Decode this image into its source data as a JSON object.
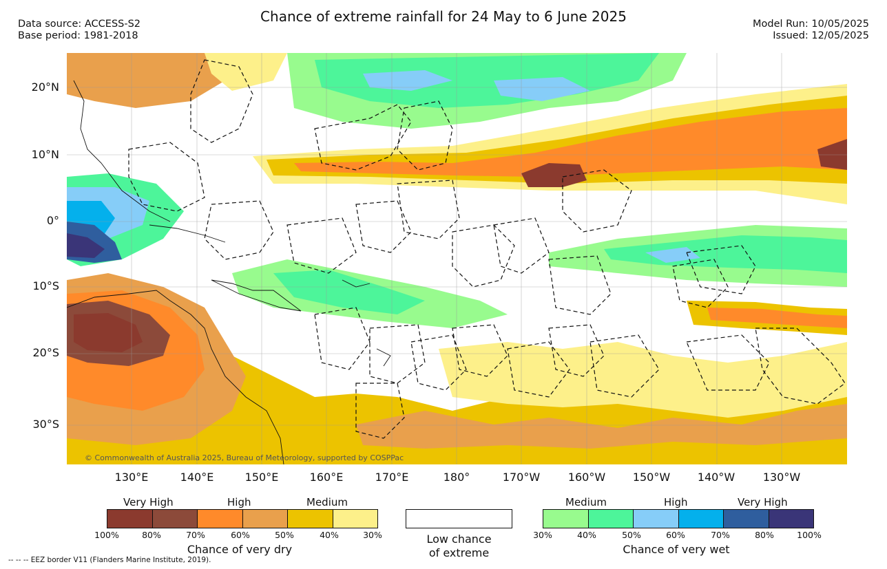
{
  "header": {
    "title": "Chance of extreme rainfall for 24 May to 6 June 2025",
    "data_source": "Data source: ACCESS-S2",
    "base_period": "Base period: 1981-2018",
    "model_run": "Model Run: 10/05/2025",
    "issued": "Issued: 12/05/2025"
  },
  "map": {
    "lat_labels": [
      "20°N",
      "10°N",
      "0°",
      "10°S",
      "20°S",
      "30°S"
    ],
    "lon_labels": [
      "130°E",
      "140°E",
      "150°E",
      "160°E",
      "170°E",
      "180°",
      "170°W",
      "160°W",
      "150°W",
      "140°W",
      "130°W"
    ],
    "copyright": "© Commonwealth of Australia 2025, Bureau of Meteorology, supported by COSPPac"
  },
  "legend": {
    "dry": {
      "categories": [
        "Very High",
        "High",
        "Medium"
      ],
      "percents": [
        "100%",
        "80%",
        "70%",
        "60%",
        "50%",
        "40%",
        "30%"
      ],
      "title": "Chance of very dry",
      "colors": [
        "#8b3a2e",
        "#8c4a3a",
        "#ff8a2a",
        "#e9a04c",
        "#ecc300",
        "#fdf08a"
      ]
    },
    "low": {
      "line1": "Low chance",
      "line2": "of extreme"
    },
    "wet": {
      "categories": [
        "Medium",
        "High",
        "Very High"
      ],
      "percents": [
        "30%",
        "40%",
        "50%",
        "60%",
        "70%",
        "80%",
        "100%"
      ],
      "title": "Chance of very wet",
      "colors": [
        "#98fb8e",
        "#4df59a",
        "#86cdf8",
        "#04b0ec",
        "#2f5e9e",
        "#3a3578"
      ]
    }
  },
  "footer": {
    "eez_note": "-- -- -- EEZ border V11 (Flanders Marine Institute, 2019)."
  }
}
